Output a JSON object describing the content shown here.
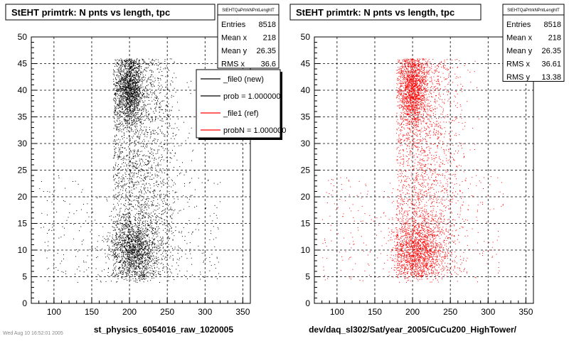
{
  "chart_data": [
    {
      "type": "scatter",
      "title": "StEHT primtrk: N pnts vs length, tpc",
      "xlabel": "st_physics_6054016_raw_1020005",
      "ylabel": "",
      "xlim": [
        70,
        360
      ],
      "ylim": [
        0,
        50
      ],
      "xticks": [
        "100",
        "150",
        "200",
        "250",
        "300",
        "350"
      ],
      "yticks": [
        "0",
        "5",
        "10",
        "15",
        "20",
        "25",
        "30",
        "35",
        "40",
        "45",
        "50"
      ],
      "grid": true,
      "color": "#000000",
      "stats": {
        "name": "StEHTQaPrtrkNPntLenghtT",
        "rows": [
          {
            "label": "Entries",
            "value": "8518"
          },
          {
            "label": "Mean x",
            "value": "218"
          },
          {
            "label": "Mean y",
            "value": "26.35"
          },
          {
            "label": "RMS x",
            "value": "36.6"
          }
        ]
      },
      "legend": {
        "placement": "top-right",
        "entries": [
          {
            "label": "_file0 (new)",
            "color": "#000000"
          },
          {
            "label": "prob = 1.000000",
            "color": "#000000"
          },
          {
            "label": "_file1 (ref)",
            "color": "#ff0000"
          },
          {
            "label": "probN = 1.000000",
            "color": "#ff0000"
          }
        ]
      },
      "clusters": [
        {
          "x": 200,
          "y": 40,
          "sx": 9,
          "sy": 3.5
        },
        {
          "x": 205,
          "y": 10,
          "sx": 16,
          "sy": 3
        },
        {
          "x": 215,
          "y": 25,
          "sx": 25,
          "sy": 11
        }
      ]
    },
    {
      "type": "scatter",
      "title": "StEHT primtrk: N pnts vs length, tpc",
      "xlabel": "dev/daq_sl302/Sat/year_2005/CuCu200_HighTower/",
      "ylabel": "",
      "xlim": [
        70,
        360
      ],
      "ylim": [
        0,
        50
      ],
      "xticks": [
        "100",
        "150",
        "200",
        "250",
        "300",
        "350"
      ],
      "yticks": [
        "0",
        "5",
        "10",
        "15",
        "20",
        "25",
        "30",
        "35",
        "40",
        "45",
        "50"
      ],
      "grid": true,
      "color": "#ff0000",
      "stats": {
        "name": "StEHTQaPrtrkNPntLenghtT",
        "rows": [
          {
            "label": "Entries",
            "value": "8518"
          },
          {
            "label": "Mean x",
            "value": "218"
          },
          {
            "label": "Mean y",
            "value": "26.35"
          },
          {
            "label": "RMS x",
            "value": "36.61"
          },
          {
            "label": "RMS y",
            "value": "13.38"
          }
        ]
      },
      "clusters": [
        {
          "x": 200,
          "y": 40,
          "sx": 9,
          "sy": 3.5
        },
        {
          "x": 205,
          "y": 10,
          "sx": 16,
          "sy": 3
        },
        {
          "x": 215,
          "y": 25,
          "sx": 25,
          "sy": 11
        }
      ]
    }
  ],
  "footnote": "Wed Aug 10 16:52:01 2005"
}
